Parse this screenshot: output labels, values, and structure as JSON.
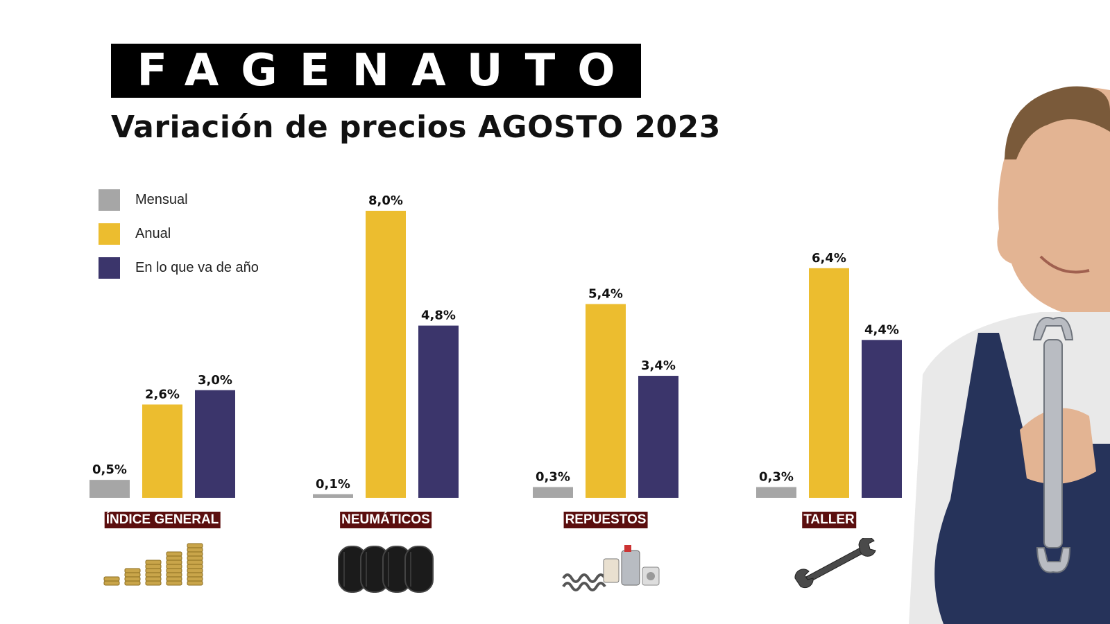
{
  "logo": {
    "text": "FAGENAUTO"
  },
  "title": "Variación de precios AGOSTO 2023",
  "colors": {
    "mensual": "#a6a6a6",
    "anual": "#ecbd2f",
    "anio": "#3b356b",
    "label_bg": "#5b0e0e"
  },
  "chart_data": {
    "type": "bar",
    "categories": [
      "ÍNDICE GENERAL",
      "NEUMÁTICOS",
      "REPUESTOS",
      "TALLER"
    ],
    "series": [
      {
        "name": "Mensual",
        "values": [
          0.5,
          0.1,
          0.3,
          0.3
        ],
        "labels": [
          "0,5%",
          "0,1%",
          "0,3%",
          "0,3%"
        ],
        "color": "#a6a6a6"
      },
      {
        "name": "Anual",
        "values": [
          2.6,
          8.0,
          5.4,
          6.4
        ],
        "labels": [
          "2,6%",
          "8,0%",
          "5,4%",
          "6,4%"
        ],
        "color": "#ecbd2f"
      },
      {
        "name": "En lo que va de año",
        "values": [
          3.0,
          4.8,
          3.4,
          4.4
        ],
        "labels": [
          "3,0%",
          "4,8%",
          "3,4%",
          "4,4%"
        ],
        "color": "#3b356b"
      }
    ],
    "legend_position": "top-left",
    "grid": false,
    "ylim": [
      0,
      8.0
    ]
  },
  "icons": [
    "coin-stacks-icon",
    "tires-icon",
    "car-parts-icon",
    "wrench-icon",
    "mechanic-photo"
  ]
}
